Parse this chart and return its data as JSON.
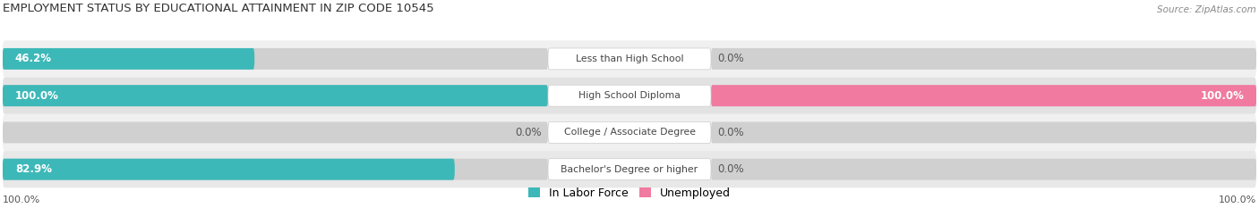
{
  "title": "EMPLOYMENT STATUS BY EDUCATIONAL ATTAINMENT IN ZIP CODE 10545",
  "source": "Source: ZipAtlas.com",
  "categories": [
    "Less than High School",
    "High School Diploma",
    "College / Associate Degree",
    "Bachelor's Degree or higher"
  ],
  "labor_force": [
    46.2,
    100.0,
    0.0,
    82.9
  ],
  "unemployed": [
    0.0,
    100.0,
    0.0,
    0.0
  ],
  "labor_force_color": "#3db8b8",
  "unemployed_color": "#f07aa0",
  "bar_bg_color": "#d8d8d8",
  "text_color": "#555555",
  "title_color": "#333333",
  "figsize": [
    14.06,
    2.33
  ],
  "dpi": 100,
  "row_bg": [
    "#f0f0f0",
    "#e2e2e2",
    "#f0f0f0",
    "#e8e8e8"
  ]
}
